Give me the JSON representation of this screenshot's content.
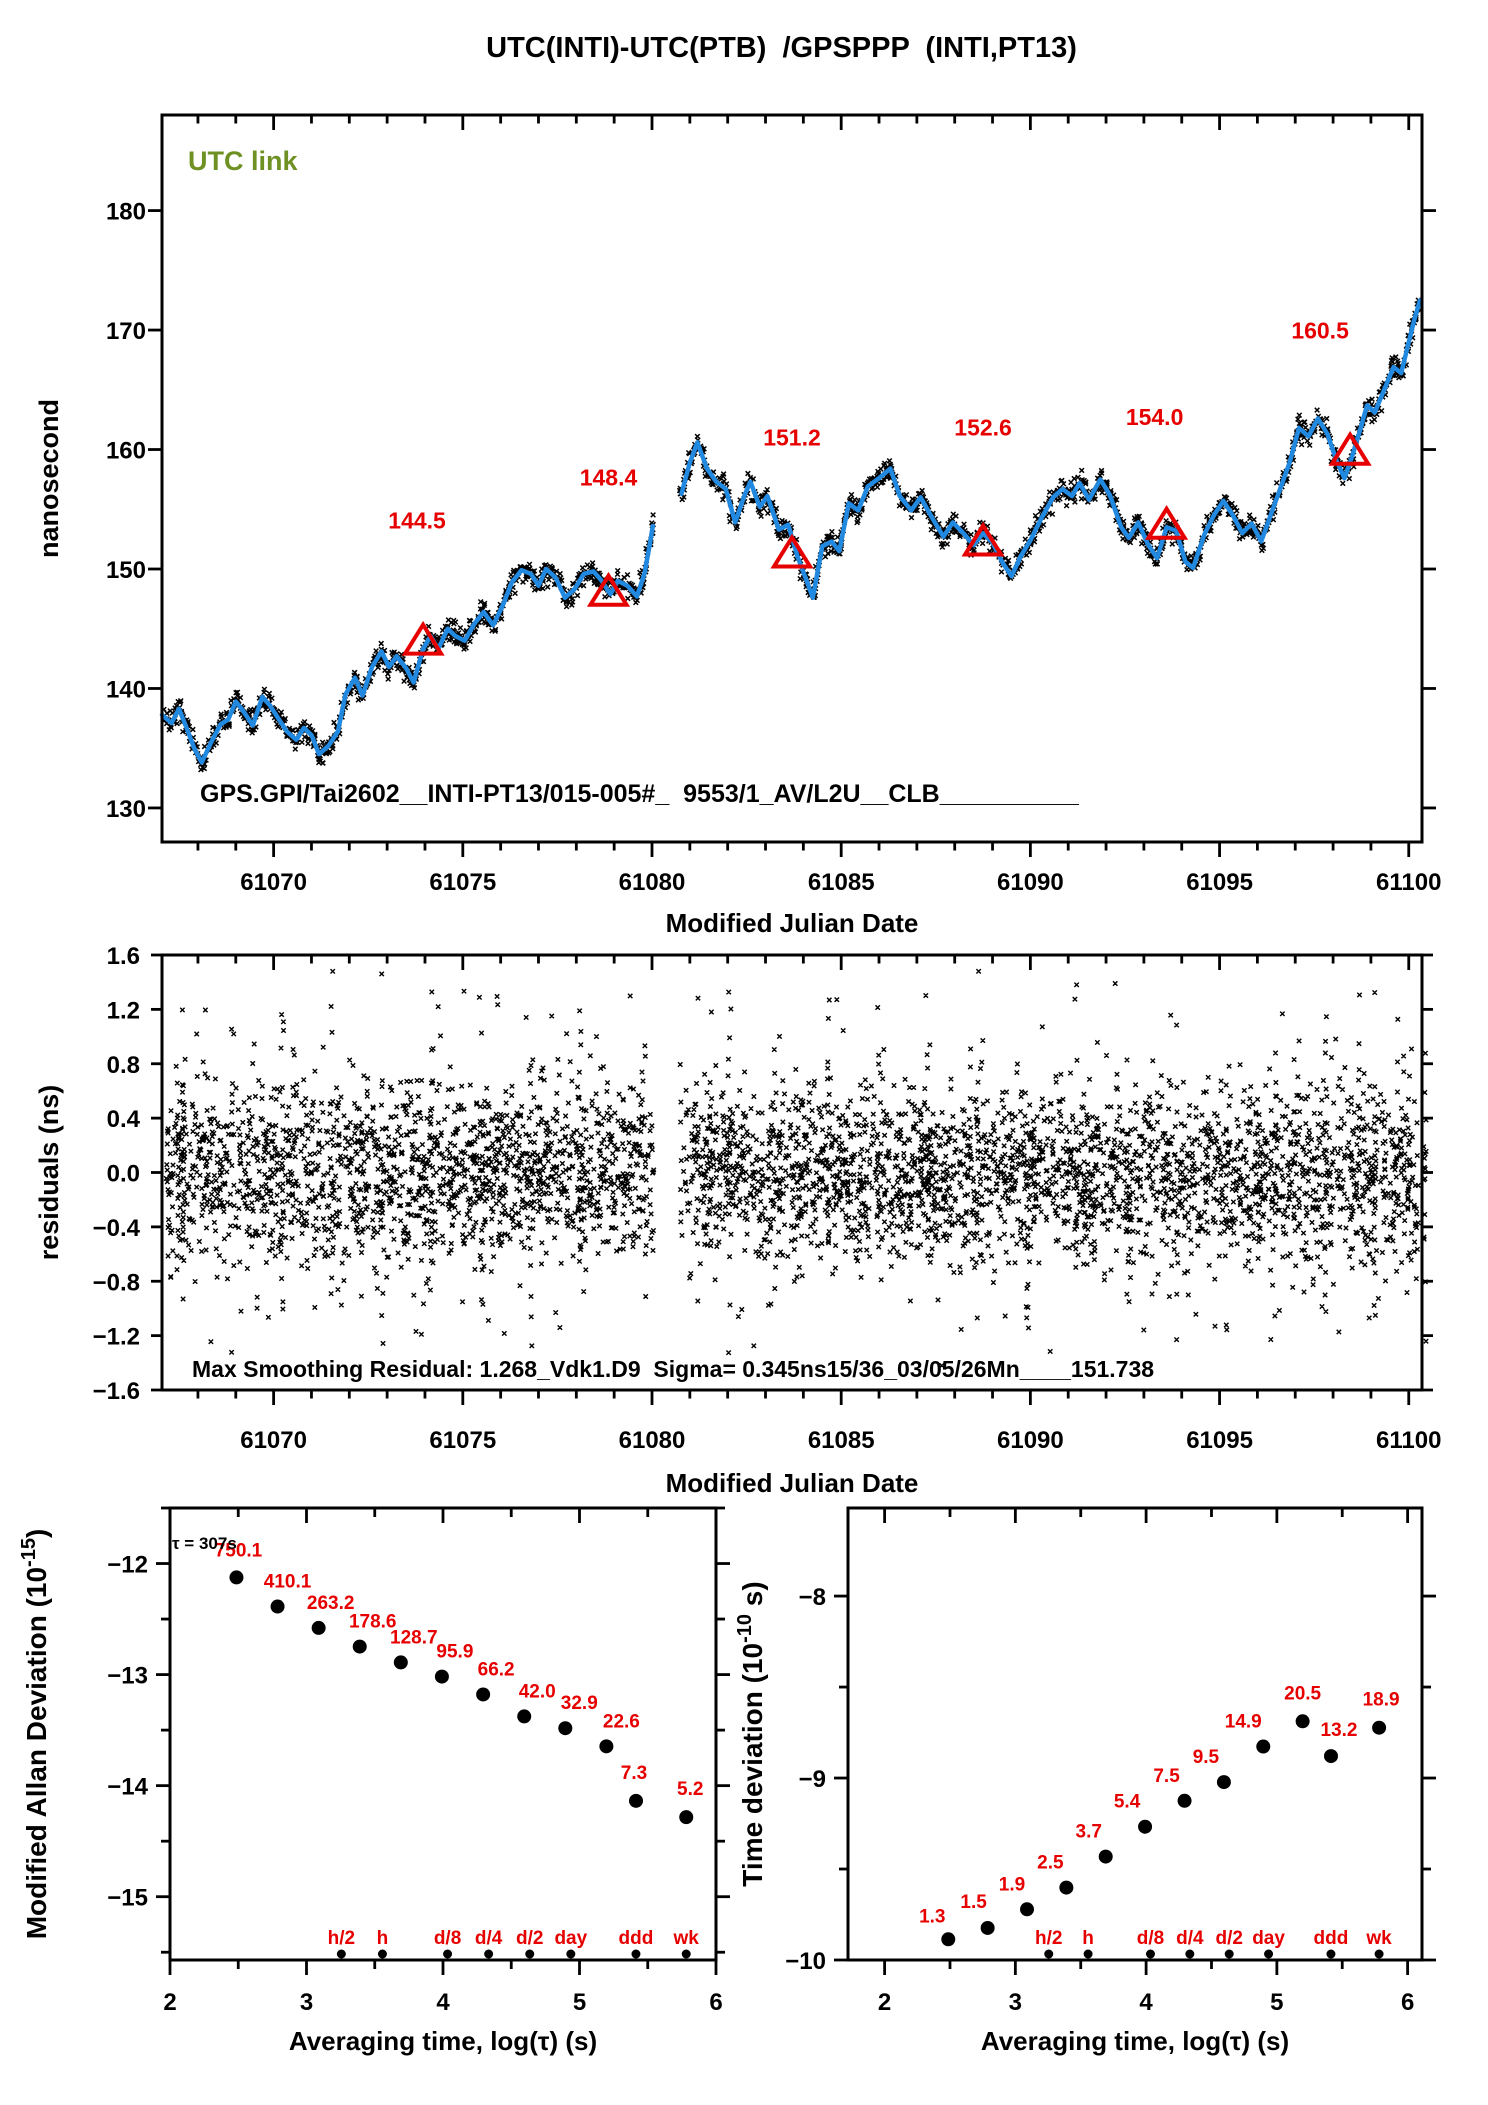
{
  "title": "UTC(INTI)-UTC(PTB)  /GPSPPP  (INTI,PT13)",
  "colors": {
    "line": "#2289e0",
    "accent_red": "#e60000",
    "utc_link_green": "#6f9124",
    "marker_black": "#000000"
  },
  "chart_data": [
    {
      "id": "utc-link-timeseries",
      "type": "line",
      "legend": "UTC link",
      "xlabel": "Modified Julian Date",
      "ylabel": "nanosecond",
      "annotation": "GPS.GPI/Tai2602__INTI-PT13/015-005#_  9553/1_AV/L2U__CLB__________",
      "xlim": [
        61067.05,
        61100.35
      ],
      "ylim": [
        127.15,
        188.0
      ],
      "xtick_values": [
        61070,
        61075,
        61080,
        61085,
        61090,
        61095,
        61100
      ],
      "xtick_labels": [
        "61070",
        "61075",
        "61080",
        "61085",
        "61090",
        "61095",
        "61100"
      ],
      "x_minor_step": 1,
      "ytick_values": [
        130,
        140,
        150,
        160,
        170,
        180
      ],
      "ytick_labels": [
        "130",
        "140",
        "150",
        "160",
        "170",
        "180"
      ],
      "data_gap": [
        61080.05,
        61080.75
      ],
      "scatter_sigma_ns": 0.48,
      "series": [
        {
          "name": "smoothed UTC link",
          "points": [
            [
              61067.05,
              137.8
            ],
            [
              61067.3,
              137.1
            ],
            [
              61067.5,
              138.3
            ],
            [
              61067.7,
              136.7
            ],
            [
              61067.9,
              135.0
            ],
            [
              61068.1,
              133.8
            ],
            [
              61068.35,
              135.5
            ],
            [
              61068.6,
              137.0
            ],
            [
              61068.8,
              137.4
            ],
            [
              61069.0,
              138.9
            ],
            [
              61069.2,
              138.1
            ],
            [
              61069.45,
              136.9
            ],
            [
              61069.7,
              139.3
            ],
            [
              61069.9,
              138.6
            ],
            [
              61070.1,
              137.6
            ],
            [
              61070.35,
              136.4
            ],
            [
              61070.6,
              135.7
            ],
            [
              61070.8,
              136.7
            ],
            [
              61071.0,
              136.1
            ],
            [
              61071.2,
              134.5
            ],
            [
              61071.45,
              135.2
            ],
            [
              61071.7,
              136.4
            ],
            [
              61071.9,
              139.5
            ],
            [
              61072.15,
              140.9
            ],
            [
              61072.35,
              139.4
            ],
            [
              61072.6,
              141.8
            ],
            [
              61072.85,
              143.1
            ],
            [
              61073.05,
              141.8
            ],
            [
              61073.25,
              142.7
            ],
            [
              61073.5,
              141.7
            ],
            [
              61073.7,
              140.5
            ],
            [
              61073.95,
              143.3
            ],
            [
              61074.15,
              144.4
            ],
            [
              61074.35,
              143.3
            ],
            [
              61074.6,
              145.0
            ],
            [
              61074.8,
              144.4
            ],
            [
              61075.05,
              144.0
            ],
            [
              61075.3,
              145.4
            ],
            [
              61075.55,
              146.4
            ],
            [
              61075.8,
              145.3
            ],
            [
              61076.05,
              146.9
            ],
            [
              61076.3,
              148.9
            ],
            [
              61076.55,
              149.9
            ],
            [
              61076.8,
              149.6
            ],
            [
              61077.0,
              148.6
            ],
            [
              61077.2,
              150.0
            ],
            [
              61077.45,
              149.3
            ],
            [
              61077.7,
              147.6
            ],
            [
              61077.95,
              148.3
            ],
            [
              61078.2,
              149.6
            ],
            [
              61078.45,
              149.8
            ],
            [
              61078.65,
              149.1
            ],
            [
              61078.9,
              147.9
            ],
            [
              61079.1,
              149.0
            ],
            [
              61079.35,
              148.6
            ],
            [
              61079.6,
              147.7
            ],
            [
              61079.8,
              149.6
            ],
            [
              61079.95,
              152.2
            ],
            [
              61080.02,
              153.6
            ],
            [
              61080.78,
              156.3
            ],
            [
              61081.0,
              158.9
            ],
            [
              61081.2,
              160.6
            ],
            [
              61081.45,
              158.4
            ],
            [
              61081.7,
              157.3
            ],
            [
              61081.95,
              156.7
            ],
            [
              61082.2,
              153.9
            ],
            [
              61082.45,
              156.2
            ],
            [
              61082.6,
              157.3
            ],
            [
              61082.85,
              155.2
            ],
            [
              61083.05,
              156.1
            ],
            [
              61083.35,
              153.3
            ],
            [
              61083.6,
              153.7
            ],
            [
              61083.85,
              151.0
            ],
            [
              61084.1,
              148.9
            ],
            [
              61084.25,
              147.6
            ],
            [
              61084.5,
              151.9
            ],
            [
              61084.75,
              152.3
            ],
            [
              61084.95,
              151.5
            ],
            [
              61085.2,
              155.5
            ],
            [
              61085.45,
              154.9
            ],
            [
              61085.7,
              156.9
            ],
            [
              61086.0,
              157.6
            ],
            [
              61086.3,
              158.4
            ],
            [
              61086.55,
              156.1
            ],
            [
              61086.85,
              154.9
            ],
            [
              61087.1,
              156.0
            ],
            [
              61087.4,
              154.3
            ],
            [
              61087.7,
              152.7
            ],
            [
              61087.95,
              153.9
            ],
            [
              61088.2,
              153.1
            ],
            [
              61088.5,
              152.0
            ],
            [
              61088.75,
              153.0
            ],
            [
              61089.0,
              152.2
            ],
            [
              61089.25,
              150.6
            ],
            [
              61089.5,
              149.4
            ],
            [
              61089.75,
              151.1
            ],
            [
              61090.0,
              152.4
            ],
            [
              61090.3,
              154.3
            ],
            [
              61090.6,
              156.0
            ],
            [
              61090.85,
              156.7
            ],
            [
              61091.1,
              156.1
            ],
            [
              61091.3,
              157.2
            ],
            [
              61091.55,
              155.8
            ],
            [
              61091.85,
              157.5
            ],
            [
              61092.1,
              156.2
            ],
            [
              61092.4,
              153.5
            ],
            [
              61092.6,
              152.6
            ],
            [
              61092.85,
              153.9
            ],
            [
              61093.1,
              152.1
            ],
            [
              61093.35,
              150.9
            ],
            [
              61093.6,
              153.5
            ],
            [
              61093.85,
              153.2
            ],
            [
              61094.1,
              150.6
            ],
            [
              61094.3,
              150.1
            ],
            [
              61094.6,
              152.9
            ],
            [
              61094.85,
              154.5
            ],
            [
              61095.1,
              155.7
            ],
            [
              61095.35,
              154.5
            ],
            [
              61095.6,
              153.0
            ],
            [
              61095.85,
              153.8
            ],
            [
              61096.1,
              152.3
            ],
            [
              61096.35,
              154.5
            ],
            [
              61096.6,
              156.7
            ],
            [
              61096.85,
              158.9
            ],
            [
              61097.1,
              161.8
            ],
            [
              61097.35,
              161.1
            ],
            [
              61097.6,
              162.6
            ],
            [
              61097.85,
              161.3
            ],
            [
              61098.1,
              159.0
            ],
            [
              61098.3,
              157.6
            ],
            [
              61098.5,
              159.4
            ],
            [
              61098.7,
              161.5
            ],
            [
              61098.9,
              163.7
            ],
            [
              61099.1,
              163.1
            ],
            [
              61099.35,
              165.0
            ],
            [
              61099.6,
              166.9
            ],
            [
              61099.8,
              166.4
            ],
            [
              61100.0,
              169.0
            ],
            [
              61100.15,
              170.9
            ],
            [
              61100.3,
              172.5
            ]
          ]
        }
      ],
      "markers": [
        {
          "x": 61073.95,
          "y": 144.0,
          "label": "144.5"
        },
        {
          "x": 61078.85,
          "y": 148.1,
          "label": "148.4"
        },
        {
          "x": 61083.7,
          "y": 151.3,
          "label": "151.2"
        },
        {
          "x": 61088.75,
          "y": 152.3,
          "label": "152.6"
        },
        {
          "x": 61093.6,
          "y": 153.7,
          "label": "154.0"
        },
        {
          "x": 61098.45,
          "y": 159.9,
          "label": "160.5"
        }
      ]
    },
    {
      "id": "residuals-scatter",
      "type": "scatter",
      "xlabel": "Modified Julian Date",
      "ylabel": "residuals (ns)",
      "annotation": "Max Smoothing Residual: 1.268_Vdk1.D9  Sigma= 0.345ns15/36_03/05/26Mn____151.738",
      "xlim": [
        61067.05,
        61100.35
      ],
      "ylim": [
        -1.6,
        1.6
      ],
      "xtick_values": [
        61070,
        61075,
        61080,
        61085,
        61090,
        61095,
        61100
      ],
      "xtick_labels": [
        "61070",
        "61075",
        "61080",
        "61085",
        "61090",
        "61095",
        "61100"
      ],
      "x_minor_step": 1,
      "ytick_values": [
        1.6,
        1.2,
        0.8,
        0.4,
        0.0,
        -0.4,
        -0.8,
        -1.2,
        -1.6
      ],
      "ytick_labels": [
        "1.6",
        "1.2",
        "0.8",
        "0.4",
        "0.0",
        "−0.4",
        "−0.8",
        "−1.2",
        "−1.6"
      ],
      "data_gap": [
        61080.05,
        61080.75
      ],
      "sigma_ns": 0.345,
      "n_points": 4600
    },
    {
      "id": "mdev",
      "type": "scatter",
      "xlabel": "Averaging time, log(τ) (s)",
      "ylabel_base": "Modified Allan Deviation (10",
      "ylabel_sup": "-15",
      "ylabel_end": ")",
      "annotation": "τ = 307s",
      "xlim": [
        2,
        6
      ],
      "ylim": [
        -15.57,
        -11.5
      ],
      "xtick_values": [
        2,
        3,
        4,
        5,
        6
      ],
      "xtick_labels": [
        "2",
        "3",
        "4",
        "5",
        "6"
      ],
      "ytick_values": [
        -12,
        -13,
        -14,
        -15
      ],
      "ytick_labels": [
        "−12",
        "−13",
        "−14",
        "−15"
      ],
      "minor_step": 0.5,
      "unit_exponent": -15,
      "points_log_tau": [
        2.487,
        2.788,
        3.089,
        3.39,
        3.691,
        3.992,
        4.294,
        4.595,
        4.896,
        5.197,
        5.414,
        5.782
      ],
      "points_labels": [
        "750.1",
        "410.1",
        "263.2",
        "178.6",
        "128.7",
        "95.9",
        "66.2",
        "42.0",
        "32.9",
        "22.6",
        "7.3",
        "5.2"
      ],
      "ref_marks": [
        {
          "label": "h/2",
          "log_tau": 3.2553
        },
        {
          "label": "h",
          "log_tau": 3.5563
        },
        {
          "label": "d/8",
          "log_tau": 4.0334
        },
        {
          "label": "d/4",
          "log_tau": 4.3344
        },
        {
          "label": "d/2",
          "log_tau": 4.6355
        },
        {
          "label": "day",
          "log_tau": 4.9365
        },
        {
          "label": "ddd",
          "log_tau": 5.4136
        },
        {
          "label": "wk",
          "log_tau": 5.7818
        }
      ]
    },
    {
      "id": "tdev",
      "type": "scatter",
      "xlabel": "Averaging time, log(τ) (s)",
      "ylabel_base": "Time deviation (10",
      "ylabel_sup": "-10",
      "ylabel_end": " s)",
      "xlim": [
        1.72,
        6.11
      ],
      "ylim": [
        -10,
        -7.516
      ],
      "xtick_values": [
        2,
        3,
        4,
        5,
        6
      ],
      "xtick_labels": [
        "2",
        "3",
        "4",
        "5",
        "6"
      ],
      "ytick_values": [
        -8,
        -9,
        -10
      ],
      "ytick_labels": [
        "−8",
        "−9",
        "−10"
      ],
      "minor_step": 0.5,
      "unit_exponent": -10,
      "points_log_tau": [
        2.487,
        2.788,
        3.089,
        3.39,
        3.691,
        3.992,
        4.294,
        4.595,
        4.896,
        5.197,
        5.414,
        5.782
      ],
      "points_labels": [
        "1.3",
        "1.5",
        "1.9",
        "2.5",
        "3.7",
        "5.4",
        "7.5",
        "9.5",
        "14.9",
        "20.5",
        "13.2",
        "18.9"
      ],
      "ref_marks": [
        {
          "label": "h/2",
          "log_tau": 3.2553
        },
        {
          "label": "h",
          "log_tau": 3.5563
        },
        {
          "label": "d/8",
          "log_tau": 4.0334
        },
        {
          "label": "d/4",
          "log_tau": 4.3344
        },
        {
          "label": "d/2",
          "log_tau": 4.6355
        },
        {
          "label": "day",
          "log_tau": 4.9365
        },
        {
          "label": "ddd",
          "log_tau": 5.4136
        },
        {
          "label": "wk",
          "log_tau": 5.7818
        }
      ]
    }
  ]
}
